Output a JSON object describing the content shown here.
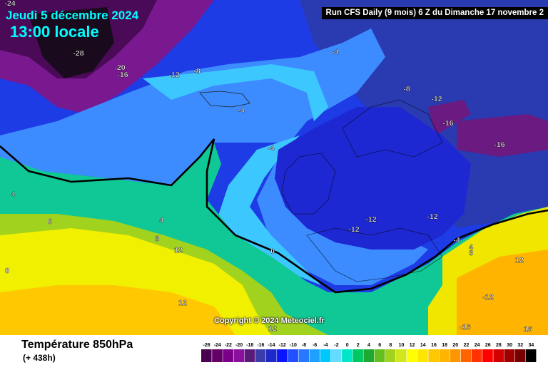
{
  "header": {
    "date": "Jeudi 5 décembre 2024",
    "time": "13:00 locale",
    "run_info": "Run CFS Daily (9 mois) 6 Z du Dimanche 17 novembre 2"
  },
  "watermark": "Copyright © 2024 Meteociel.fr",
  "footer": {
    "title": "Température 850hPa",
    "subtitle": "(+ 438h)"
  },
  "legend": {
    "ticks": [
      "-26",
      "-24",
      "-22",
      "-20",
      "-18",
      "-16",
      "-14",
      "-12",
      "-10",
      "-8",
      "-6",
      "-4",
      "-2",
      "0",
      "2",
      "4",
      "6",
      "8",
      "10",
      "12",
      "14",
      "16",
      "18",
      "20",
      "22",
      "24",
      "26",
      "28",
      "30",
      "32",
      "34"
    ],
    "colors": [
      "#4a0050",
      "#640068",
      "#7a0088",
      "#8c10a0",
      "#5a1a7a",
      "#3c3ca8",
      "#1e2ac8",
      "#0a14ff",
      "#2350ff",
      "#2878ff",
      "#1ea0ff",
      "#00c8ff",
      "#64dcff",
      "#00e6c8",
      "#00c864",
      "#1eaa32",
      "#64be1e",
      "#a0d21e",
      "#d2e61e",
      "#ffff00",
      "#ffe600",
      "#ffc800",
      "#ffb400",
      "#ff9600",
      "#ff6400",
      "#ff3200",
      "#ff0000",
      "#d20000",
      "#a00000",
      "#780000",
      "#000000"
    ]
  },
  "map_labels": [
    {
      "text": "-24"
    },
    {
      "text": "-28"
    },
    {
      "text": "-20"
    },
    {
      "text": "-16"
    },
    {
      "text": "-12"
    },
    {
      "text": "-8"
    },
    {
      "text": "-4"
    },
    {
      "text": "-4"
    },
    {
      "text": "-4"
    },
    {
      "text": "-8"
    },
    {
      "text": "-12"
    },
    {
      "text": "-16"
    },
    {
      "text": "-16"
    },
    {
      "text": "-16"
    },
    {
      "text": "-12"
    },
    {
      "text": "-12"
    },
    {
      "text": "-12"
    },
    {
      "text": "-4"
    },
    {
      "text": "4"
    },
    {
      "text": "0"
    },
    {
      "text": "4"
    },
    {
      "text": "8"
    },
    {
      "text": "12"
    },
    {
      "text": "0"
    },
    {
      "text": "0"
    },
    {
      "text": "12"
    },
    {
      "text": "12"
    },
    {
      "text": "4"
    },
    {
      "text": "8"
    },
    {
      "text": "12"
    },
    {
      "text": "-12"
    },
    {
      "text": "-16"
    },
    {
      "text": "16"
    }
  ]
}
